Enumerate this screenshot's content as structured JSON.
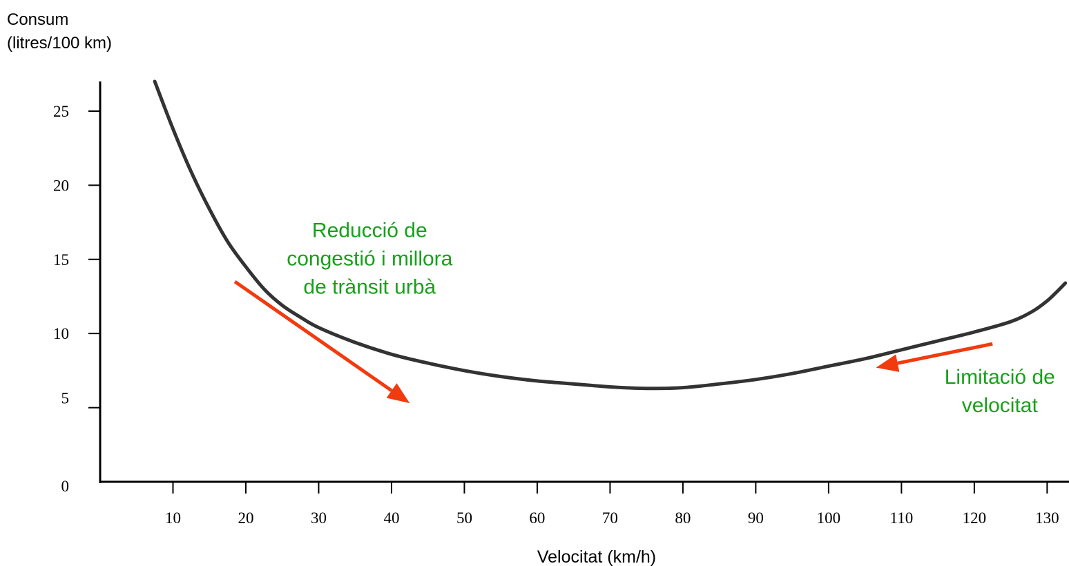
{
  "chart_data": {
    "type": "line",
    "ylabel_lines": [
      "Consum",
      "(litres/100 km)"
    ],
    "xlabel": "Velocitat (km/h)",
    "ylim": [
      0,
      27
    ],
    "xlim": [
      0,
      133
    ],
    "x_ticks": [
      10,
      20,
      30,
      40,
      50,
      60,
      70,
      80,
      90,
      100,
      110,
      120,
      130
    ],
    "y_ticks": [
      0,
      5,
      10,
      15,
      20,
      25
    ],
    "grid": false,
    "legend": "none",
    "series": [
      {
        "color": "#333333",
        "points": [
          [
            7.5,
            27.0
          ],
          [
            10,
            23.8
          ],
          [
            12.5,
            20.9
          ],
          [
            15,
            18.4
          ],
          [
            17.5,
            16.2
          ],
          [
            20,
            14.5
          ],
          [
            22.5,
            13.0
          ],
          [
            25,
            11.9
          ],
          [
            27.5,
            11.1
          ],
          [
            30,
            10.4
          ],
          [
            35,
            9.4
          ],
          [
            40,
            8.6
          ],
          [
            45,
            8.0
          ],
          [
            50,
            7.5
          ],
          [
            55,
            7.1
          ],
          [
            60,
            6.8
          ],
          [
            65,
            6.6
          ],
          [
            70,
            6.4
          ],
          [
            75,
            6.3
          ],
          [
            80,
            6.35
          ],
          [
            85,
            6.6
          ],
          [
            90,
            6.9
          ],
          [
            95,
            7.3
          ],
          [
            100,
            7.8
          ],
          [
            105,
            8.3
          ],
          [
            110,
            8.9
          ],
          [
            115,
            9.5
          ],
          [
            120,
            10.1
          ],
          [
            125,
            10.8
          ],
          [
            128,
            11.5
          ],
          [
            130,
            12.2
          ],
          [
            131.5,
            12.9
          ],
          [
            132.5,
            13.4
          ]
        ]
      }
    ],
    "arrows": [
      {
        "color": "#f23a0f",
        "from": [
          18.5,
          13.5
        ],
        "to": [
          42.5,
          5.3
        ]
      },
      {
        "color": "#f23a0f",
        "from": [
          122.5,
          9.3
        ],
        "to": [
          106.5,
          7.7
        ]
      }
    ],
    "annotations": [
      {
        "color": "#17a01a",
        "lines": [
          "Reducció de",
          "congestió i millora",
          "de trànsit urbà"
        ],
        "anchor": [
          37,
          16.5
        ]
      },
      {
        "color": "#17a01a",
        "lines": [
          "Limitació de",
          "velocitat"
        ],
        "anchor": [
          123.5,
          6.6
        ]
      }
    ]
  }
}
